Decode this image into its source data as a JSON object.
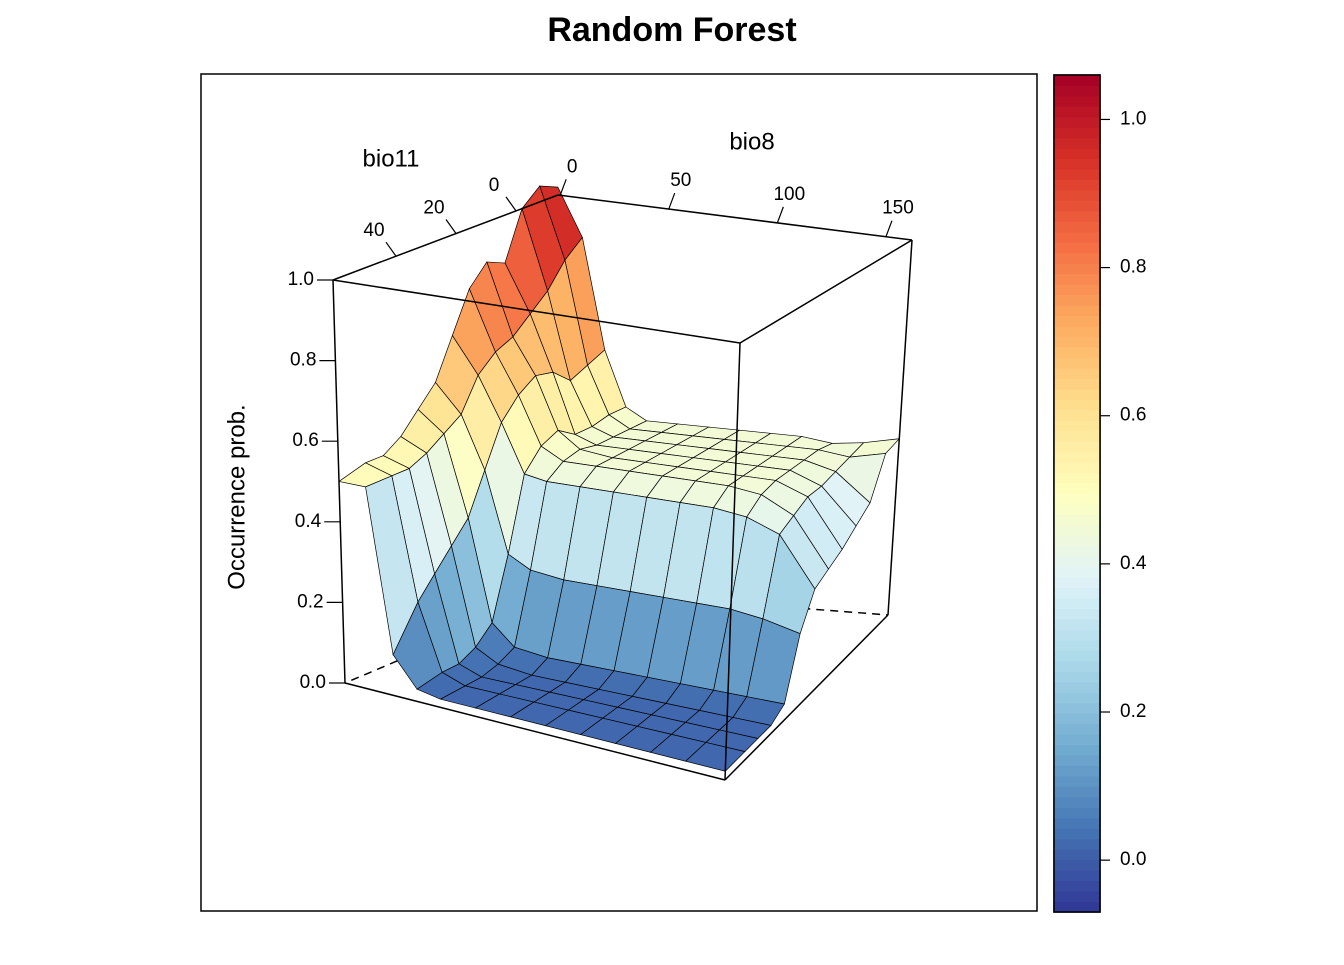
{
  "chart_data": {
    "type": "surface",
    "title": "Random Forest",
    "x_label": "bio8",
    "y_label": "bio11",
    "z_label": "Occurrence prob.",
    "x": [
      -1,
      10,
      20,
      30,
      40,
      55,
      70,
      85,
      100,
      115,
      130,
      145,
      162
    ],
    "y": [
      -14,
      -8,
      -2,
      4,
      10,
      16,
      22,
      28,
      34,
      40,
      46,
      52,
      61
    ],
    "z": [
      [
        1.02,
        0.9,
        0.62,
        0.48,
        0.45,
        0.45,
        0.45,
        0.45,
        0.45,
        0.45,
        0.44,
        0.45,
        0.47
      ],
      [
        1.04,
        0.86,
        0.6,
        0.48,
        0.45,
        0.45,
        0.45,
        0.45,
        0.45,
        0.45,
        0.45,
        0.44,
        0.46
      ],
      [
        1.0,
        0.8,
        0.58,
        0.47,
        0.45,
        0.45,
        0.45,
        0.45,
        0.45,
        0.45,
        0.45,
        0.43,
        0.36
      ],
      [
        0.88,
        0.76,
        0.62,
        0.47,
        0.45,
        0.45,
        0.45,
        0.45,
        0.45,
        0.45,
        0.45,
        0.42,
        0.33
      ],
      [
        0.9,
        0.72,
        0.63,
        0.5,
        0.46,
        0.45,
        0.45,
        0.45,
        0.45,
        0.45,
        0.45,
        0.42,
        0.3
      ],
      [
        0.85,
        0.7,
        0.6,
        0.48,
        0.45,
        0.45,
        0.45,
        0.45,
        0.45,
        0.45,
        0.44,
        0.4,
        0.28
      ],
      [
        0.75,
        0.66,
        0.55,
        0.43,
        0.42,
        0.42,
        0.42,
        0.42,
        0.42,
        0.42,
        0.41,
        0.38,
        0.26
      ],
      [
        0.65,
        0.58,
        0.45,
        0.25,
        0.22,
        0.21,
        0.21,
        0.21,
        0.21,
        0.21,
        0.21,
        0.2,
        0.18
      ],
      [
        0.6,
        0.55,
        0.35,
        0.1,
        0.05,
        0.04,
        0.04,
        0.04,
        0.04,
        0.04,
        0.04,
        0.04,
        0.04
      ],
      [
        0.55,
        0.52,
        0.3,
        0.06,
        0.03,
        0.02,
        0.02,
        0.02,
        0.02,
        0.02,
        0.02,
        0.02,
        0.02
      ],
      [
        0.52,
        0.5,
        0.25,
        0.04,
        0.02,
        0.02,
        0.02,
        0.02,
        0.02,
        0.02,
        0.02,
        0.02,
        0.02
      ],
      [
        0.52,
        0.5,
        0.2,
        0.04,
        0.02,
        0.02,
        0.02,
        0.02,
        0.02,
        0.02,
        0.02,
        0.02,
        0.02
      ],
      [
        0.5,
        0.5,
        0.1,
        0.03,
        0.02,
        0.02,
        0.02,
        0.02,
        0.02,
        0.02,
        0.02,
        0.02,
        0.02
      ]
    ],
    "xlim": [
      -1,
      162
    ],
    "ylim": [
      -14,
      61
    ],
    "zlim": [
      0,
      1
    ],
    "xticks": [
      0,
      50,
      100,
      150
    ],
    "yticks": [
      0,
      20,
      40
    ],
    "zticks": [
      {
        "value": 0,
        "label": "0.0"
      },
      0.2,
      0.4,
      0.6,
      0.8,
      {
        "value": 1,
        "label": "1.0"
      }
    ],
    "clim": [
      -0.07,
      1.06
    ],
    "cticks": [
      {
        "value": 0,
        "label": "0.0"
      },
      0.2,
      0.4,
      0.6,
      0.8,
      {
        "value": 1,
        "label": "1.0"
      }
    ],
    "colors": [
      "#313695",
      "#4575b4",
      "#74add1",
      "#abd9e9",
      "#e0f3f8",
      "#ffffbf",
      "#fee090",
      "#fdae61",
      "#f46d43",
      "#d73027",
      "#a50026"
    ]
  }
}
